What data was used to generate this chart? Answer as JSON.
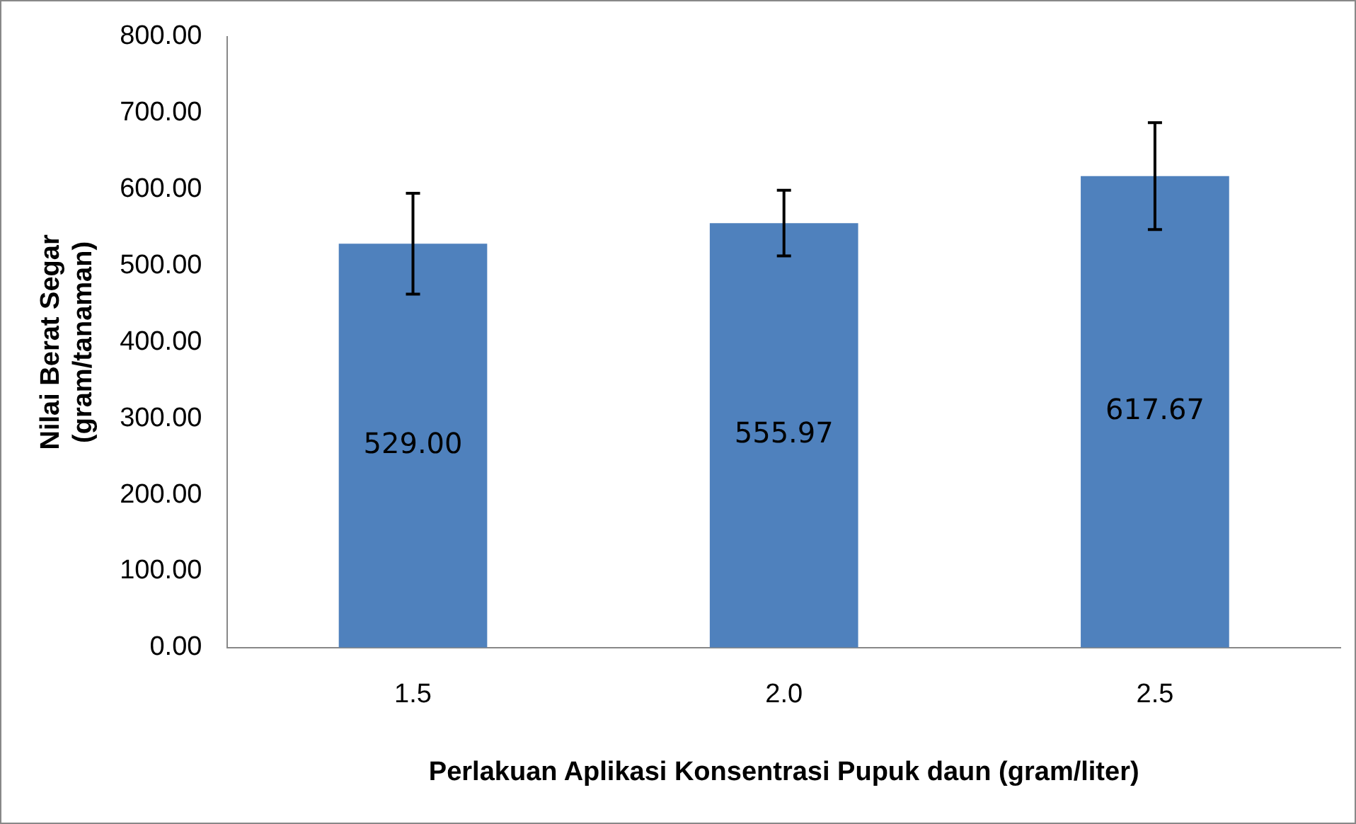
{
  "chart_data": {
    "type": "bar",
    "xlabel": "Perlakuan Aplikasi Konsentrasi Pupuk daun (gram/liter)",
    "ylabel": "Nilai Berat Segar (gram/tanaman)",
    "categories": [
      "1.5",
      "2.0",
      "2.5"
    ],
    "values": [
      529.0,
      555.97,
      617.67
    ],
    "errors": [
      66,
      43,
      70
    ],
    "color": "#4f81bd",
    "value_labels": [
      "529.00",
      "555.97",
      "617.67"
    ],
    "ylim": [
      0,
      800
    ],
    "yticks": [
      {
        "value": 0,
        "label": "0.00"
      },
      {
        "value": 100,
        "label": "100.00"
      },
      {
        "value": 200,
        "label": "200.00"
      },
      {
        "value": 300,
        "label": "300.00"
      },
      {
        "value": 400,
        "label": "400.00"
      },
      {
        "value": 500,
        "label": "500.00"
      },
      {
        "value": 600,
        "label": "600.00"
      },
      {
        "value": 700,
        "label": "700.00"
      },
      {
        "value": 800,
        "label": "800.00"
      }
    ],
    "grid": false,
    "legend": false
  }
}
